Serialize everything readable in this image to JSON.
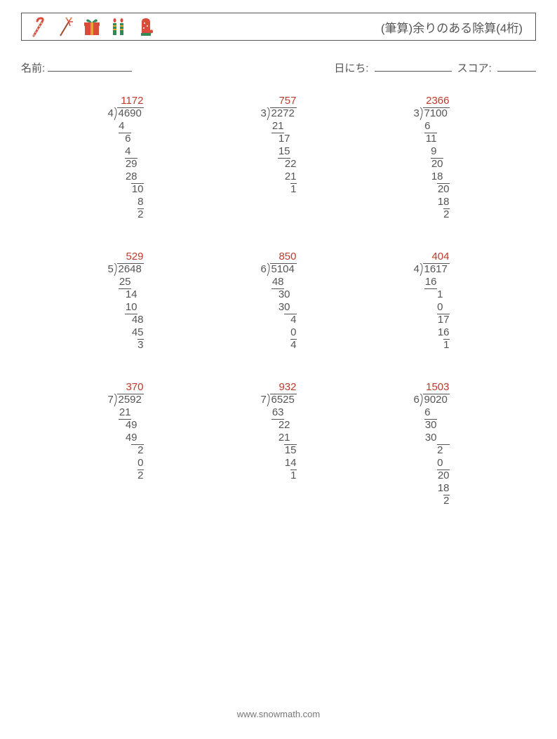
{
  "header": {
    "title": "(筆算)余りのある除算(4桁)"
  },
  "meta": {
    "name_label": "名前:",
    "date_label": "日にち:",
    "score_label": "スコア:",
    "name_line_width": 120,
    "date_line_width": 110,
    "score_line_width": 55
  },
  "layout": {
    "digit_width": 9,
    "divisor_gap": 6,
    "quotient_color": "#c0392b",
    "text_color": "#555555"
  },
  "problems": [
    {
      "divisor": "4",
      "dividend": "4690",
      "quotient": "1172",
      "steps": [
        {
          "text": "4",
          "indent": 0,
          "line_after": {
            "start": 0,
            "end": 2
          }
        },
        {
          "text": "6",
          "indent": 1
        },
        {
          "text": "4",
          "indent": 1,
          "line_after": {
            "start": 1,
            "end": 3
          }
        },
        {
          "text": "29",
          "indent": 1
        },
        {
          "text": "28",
          "indent": 1,
          "line_after": {
            "start": 2,
            "end": 4
          }
        },
        {
          "text": "10",
          "indent": 2
        },
        {
          "text": "8",
          "indent": 3,
          "line_after": {
            "start": 3,
            "end": 4
          }
        },
        {
          "text": "2",
          "indent": 3
        }
      ]
    },
    {
      "divisor": "3",
      "dividend": "2272",
      "quotient": "757",
      "steps": [
        {
          "text": "21",
          "indent": 0,
          "line_after": {
            "start": 0,
            "end": 2
          }
        },
        {
          "text": "17",
          "indent": 1
        },
        {
          "text": "15",
          "indent": 1,
          "line_after": {
            "start": 1,
            "end": 3
          }
        },
        {
          "text": "22",
          "indent": 2
        },
        {
          "text": "21",
          "indent": 2,
          "line_after": {
            "start": 3,
            "end": 4
          }
        },
        {
          "text": "1",
          "indent": 3
        }
      ]
    },
    {
      "divisor": "3",
      "dividend": "7100",
      "quotient": "2366",
      "steps": [
        {
          "text": "6",
          "indent": 0,
          "line_after": {
            "start": 0,
            "end": 2
          }
        },
        {
          "text": "11",
          "indent": 0
        },
        {
          "text": "9",
          "indent": 1,
          "line_after": {
            "start": 1,
            "end": 3
          }
        },
        {
          "text": "20",
          "indent": 1
        },
        {
          "text": "18",
          "indent": 1,
          "line_after": {
            "start": 2,
            "end": 4
          }
        },
        {
          "text": "20",
          "indent": 2
        },
        {
          "text": "18",
          "indent": 2,
          "line_after": {
            "start": 3,
            "end": 4
          }
        },
        {
          "text": "2",
          "indent": 3
        }
      ]
    },
    {
      "divisor": "5",
      "dividend": "2648",
      "quotient": "529",
      "steps": [
        {
          "text": "25",
          "indent": 0,
          "line_after": {
            "start": 0,
            "end": 2
          }
        },
        {
          "text": "14",
          "indent": 1
        },
        {
          "text": "10",
          "indent": 1,
          "line_after": {
            "start": 1,
            "end": 3
          }
        },
        {
          "text": "48",
          "indent": 2
        },
        {
          "text": "45",
          "indent": 2,
          "line_after": {
            "start": 3,
            "end": 4
          }
        },
        {
          "text": "3",
          "indent": 3
        }
      ]
    },
    {
      "divisor": "6",
      "dividend": "5104",
      "quotient": "850",
      "steps": [
        {
          "text": "48",
          "indent": 0,
          "line_after": {
            "start": 0,
            "end": 2
          }
        },
        {
          "text": "30",
          "indent": 1
        },
        {
          "text": "30",
          "indent": 1,
          "line_after": {
            "start": 2,
            "end": 4
          }
        },
        {
          "text": "4",
          "indent": 3
        },
        {
          "text": "0",
          "indent": 3,
          "line_after": {
            "start": 3,
            "end": 4
          }
        },
        {
          "text": "4",
          "indent": 3
        }
      ]
    },
    {
      "divisor": "4",
      "dividend": "1617",
      "quotient": "404",
      "steps": [
        {
          "text": "16",
          "indent": 0,
          "line_after": {
            "start": 0,
            "end": 2
          }
        },
        {
          "text": "1",
          "indent": 2
        },
        {
          "text": "0",
          "indent": 2,
          "line_after": {
            "start": 2,
            "end": 4
          }
        },
        {
          "text": "17",
          "indent": 2
        },
        {
          "text": "16",
          "indent": 2,
          "line_after": {
            "start": 3,
            "end": 4
          }
        },
        {
          "text": "1",
          "indent": 3
        }
      ]
    },
    {
      "divisor": "7",
      "dividend": "2592",
      "quotient": "370",
      "steps": [
        {
          "text": "21",
          "indent": 0,
          "line_after": {
            "start": 0,
            "end": 2
          }
        },
        {
          "text": "49",
          "indent": 1
        },
        {
          "text": "49",
          "indent": 1,
          "line_after": {
            "start": 2,
            "end": 4
          }
        },
        {
          "text": "2",
          "indent": 3
        },
        {
          "text": "0",
          "indent": 3,
          "line_after": {
            "start": 3,
            "end": 4
          }
        },
        {
          "text": "2",
          "indent": 3
        }
      ]
    },
    {
      "divisor": "7",
      "dividend": "6525",
      "quotient": "932",
      "steps": [
        {
          "text": "63",
          "indent": 0,
          "line_after": {
            "start": 0,
            "end": 2
          }
        },
        {
          "text": "22",
          "indent": 1
        },
        {
          "text": "21",
          "indent": 1,
          "line_after": {
            "start": 2,
            "end": 4
          }
        },
        {
          "text": "15",
          "indent": 2
        },
        {
          "text": "14",
          "indent": 2,
          "line_after": {
            "start": 3,
            "end": 4
          }
        },
        {
          "text": "1",
          "indent": 3
        }
      ]
    },
    {
      "divisor": "6",
      "dividend": "9020",
      "quotient": "1503",
      "steps": [
        {
          "text": "6",
          "indent": 0,
          "line_after": {
            "start": 0,
            "end": 2
          }
        },
        {
          "text": "30",
          "indent": 0
        },
        {
          "text": "30",
          "indent": 0,
          "line_after": {
            "start": 2,
            "end": 4
          }
        },
        {
          "text": "2",
          "indent": 2
        },
        {
          "text": "0",
          "indent": 2,
          "line_after": {
            "start": 2,
            "end": 4
          }
        },
        {
          "text": "20",
          "indent": 2
        },
        {
          "text": "18",
          "indent": 2,
          "line_after": {
            "start": 3,
            "end": 4
          }
        },
        {
          "text": "2",
          "indent": 3
        }
      ]
    }
  ],
  "footer": {
    "text": "www.snowmath.com"
  },
  "icons": {
    "candy_cane_colors": [
      "#d94b3a",
      "#ffffff"
    ],
    "firework_colors": [
      "#a24b2e",
      "#d94b3a",
      "#e8a02e"
    ],
    "gift_colors": [
      "#d94b3a",
      "#2e8b57",
      "#e8a02e"
    ],
    "candle_colors": [
      "#2e8b57",
      "#e8a02e",
      "#d94b3a"
    ],
    "mitten_colors": [
      "#d94b3a",
      "#2e8b57"
    ]
  }
}
